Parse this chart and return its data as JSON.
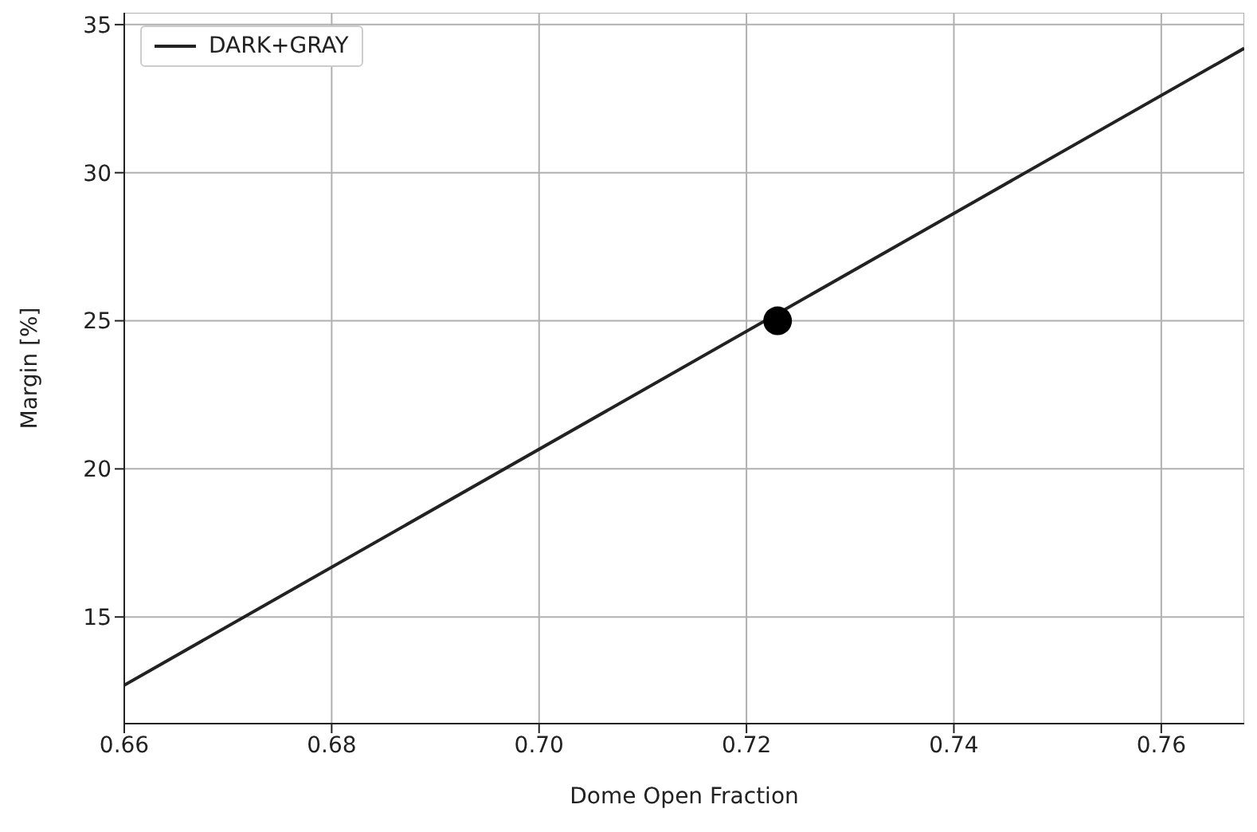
{
  "chart_data": {
    "type": "line",
    "xlabel": "Dome Open Fraction",
    "ylabel": "Margin [%]",
    "xlim": [
      0.66,
      0.768
    ],
    "ylim": [
      11.4,
      35.4
    ],
    "xticks": [
      0.66,
      0.68,
      {
        "value": 0.7,
        "label": "0.70"
      },
      0.72,
      0.74,
      0.76
    ],
    "yticks": [
      15,
      20,
      25,
      30,
      35
    ],
    "grid": true,
    "legend": "top left",
    "series": [
      {
        "name": "DARK+GRAY",
        "color": "#222222",
        "x": [
          0.66,
          0.768
        ],
        "values": [
          12.7,
          34.2
        ],
        "line_style": "solid",
        "marker": "none"
      },
      {
        "type": "scatter",
        "color": "#000000",
        "x": [
          0.723
        ],
        "values": [
          25
        ],
        "marker": "circle"
      }
    ]
  }
}
